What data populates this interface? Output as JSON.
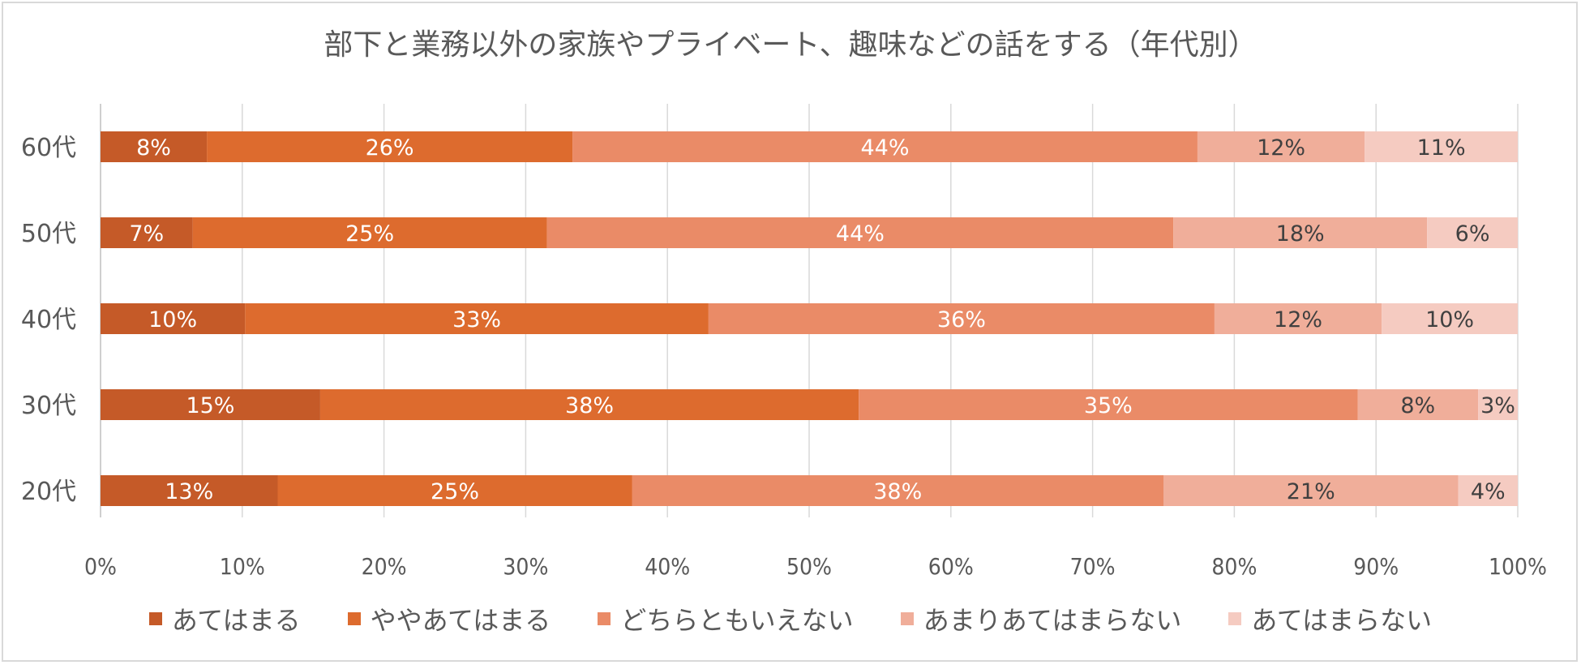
{
  "chart_data": {
    "type": "bar",
    "orientation": "horizontal",
    "stacked": true,
    "title": "部下と業務以外の家族やプライベート、趣味などの話をする（年代別）",
    "categories": [
      "60代",
      "50代",
      "40代",
      "30代",
      "20代"
    ],
    "series": [
      {
        "name": "あてはまる",
        "color": "#c55a28",
        "label_color": "#ffffff",
        "values": [
          7.5,
          6.5,
          10.2,
          15.5,
          12.5
        ],
        "labels": [
          "8%",
          "7%",
          "10%",
          "15%",
          "13%"
        ]
      },
      {
        "name": "ややあてはまる",
        "color": "#dd6b2e",
        "label_color": "#ffffff",
        "values": [
          25.8,
          25.0,
          32.7,
          38.0,
          25.0
        ],
        "labels": [
          "26%",
          "25%",
          "33%",
          "38%",
          "25%"
        ]
      },
      {
        "name": "どちらともいえない",
        "color": "#ea8b67",
        "label_color": "#ffffff",
        "values": [
          44.1,
          44.2,
          35.7,
          35.2,
          37.5
        ],
        "labels": [
          "44%",
          "44%",
          "36%",
          "35%",
          "38%"
        ]
      },
      {
        "name": "あまりあてはまらない",
        "color": "#f0ae9a",
        "label_color": "#404040",
        "values": [
          11.8,
          17.9,
          11.8,
          8.5,
          20.8
        ],
        "labels": [
          "12%",
          "18%",
          "12%",
          "8%",
          "21%"
        ]
      },
      {
        "name": "あてはまらない",
        "color": "#f5cbc1",
        "label_color": "#404040",
        "values": [
          10.8,
          6.4,
          9.6,
          2.8,
          4.2
        ],
        "labels": [
          "11%",
          "6%",
          "10%",
          "3%",
          "4%"
        ]
      }
    ],
    "xlim": [
      0,
      100
    ],
    "xticks": [
      "0%",
      "10%",
      "20%",
      "30%",
      "40%",
      "50%",
      "60%",
      "70%",
      "80%",
      "90%",
      "100%"
    ],
    "grid": true,
    "legend_position": "bottom"
  }
}
